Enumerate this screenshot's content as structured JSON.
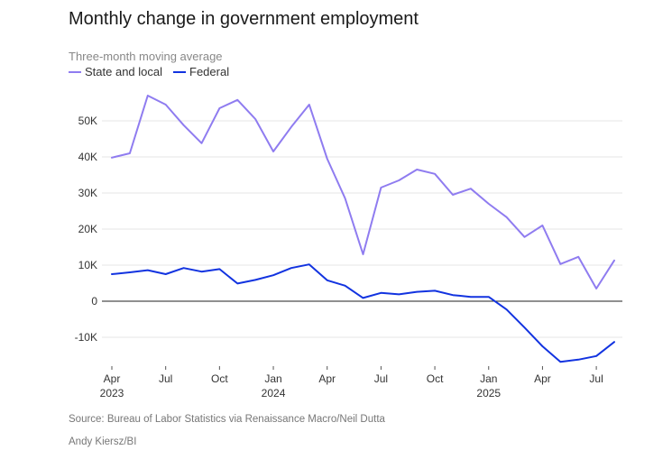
{
  "chart_data": {
    "type": "line",
    "title": "Monthly change in government employment",
    "subtitle": "Three-month moving average",
    "source": "Source: Bureau of Labor Statistics via Renaissance Macro/Neil Dutta",
    "credit": "Andy Kiersz/BI",
    "colors": {
      "state_local": "#8f7cf0",
      "federal": "#1233e0",
      "zero_line": "#222222",
      "grid": "#e6e6e6"
    },
    "ylim": [
      -18000,
      59000
    ],
    "yticks": [
      50000,
      40000,
      30000,
      20000,
      10000,
      0,
      -10000
    ],
    "ytick_labels": [
      "50K",
      "40K",
      "30K",
      "20K",
      "10K",
      "0",
      "-10K"
    ],
    "x_ticks": [
      {
        "index": 0,
        "label": "Apr",
        "year": "2023"
      },
      {
        "index": 3,
        "label": "Jul",
        "year": ""
      },
      {
        "index": 6,
        "label": "Oct",
        "year": ""
      },
      {
        "index": 9,
        "label": "Jan",
        "year": "2024"
      },
      {
        "index": 12,
        "label": "Apr",
        "year": ""
      },
      {
        "index": 15,
        "label": "Jul",
        "year": ""
      },
      {
        "index": 18,
        "label": "Oct",
        "year": ""
      },
      {
        "index": 21,
        "label": "Jan",
        "year": "2025"
      },
      {
        "index": 24,
        "label": "Apr",
        "year": ""
      },
      {
        "index": 27,
        "label": "Jul",
        "year": ""
      }
    ],
    "x": [
      "2023-04",
      "2023-05",
      "2023-06",
      "2023-07",
      "2023-08",
      "2023-09",
      "2023-10",
      "2023-11",
      "2023-12",
      "2024-01",
      "2024-02",
      "2024-03",
      "2024-04",
      "2024-05",
      "2024-06",
      "2024-07",
      "2024-08",
      "2024-09",
      "2024-10",
      "2024-11",
      "2024-12",
      "2025-01",
      "2025-02",
      "2025-03",
      "2025-04",
      "2025-05",
      "2025-06",
      "2025-07",
      "2025-08"
    ],
    "series": [
      {
        "name": "State and local",
        "key": "state_local",
        "values": [
          39800,
          41000,
          57000,
          54500,
          48800,
          43800,
          53500,
          55800,
          50500,
          41500,
          48300,
          54500,
          39500,
          28500,
          13000,
          31500,
          33500,
          36500,
          35300,
          29500,
          31200,
          27000,
          23300,
          17800,
          21000,
          10300,
          12300,
          3500,
          11300
        ]
      },
      {
        "name": "Federal",
        "key": "federal",
        "values": [
          7500,
          8000,
          8600,
          7500,
          9200,
          8200,
          8900,
          4900,
          5900,
          7200,
          9200,
          10200,
          5800,
          4300,
          900,
          2300,
          1900,
          2600,
          2900,
          1700,
          1200,
          1200,
          -2300,
          -7300,
          -12500,
          -16800,
          -16200,
          -15200,
          -11300
        ]
      }
    ]
  }
}
